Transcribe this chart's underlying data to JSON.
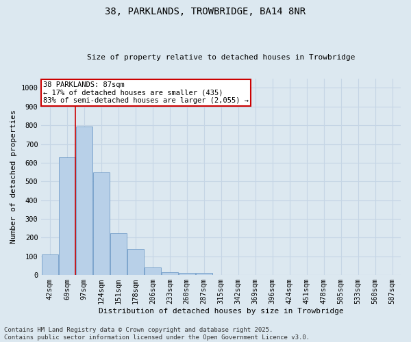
{
  "title_line1": "38, PARKLANDS, TROWBRIDGE, BA14 8NR",
  "title_line2": "Size of property relative to detached houses in Trowbridge",
  "xlabel": "Distribution of detached houses by size in Trowbridge",
  "ylabel": "Number of detached properties",
  "categories": [
    "42sqm",
    "69sqm",
    "97sqm",
    "124sqm",
    "151sqm",
    "178sqm",
    "206sqm",
    "233sqm",
    "260sqm",
    "287sqm",
    "315sqm",
    "342sqm",
    "369sqm",
    "396sqm",
    "424sqm",
    "451sqm",
    "478sqm",
    "505sqm",
    "533sqm",
    "560sqm",
    "587sqm"
  ],
  "values": [
    110,
    630,
    795,
    548,
    222,
    138,
    42,
    15,
    13,
    10,
    0,
    0,
    0,
    0,
    0,
    0,
    0,
    0,
    0,
    0,
    0
  ],
  "bar_color": "#b8d0e8",
  "bar_edgecolor": "#6090c0",
  "grid_color": "#c5d5e5",
  "background_color": "#dce8f0",
  "vline_color": "#cc0000",
  "annotation_text": "38 PARKLANDS: 87sqm\n← 17% of detached houses are smaller (435)\n83% of semi-detached houses are larger (2,055) →",
  "annotation_box_color": "#ffffff",
  "annotation_box_edgecolor": "#cc0000",
  "footer_text": "Contains HM Land Registry data © Crown copyright and database right 2025.\nContains public sector information licensed under the Open Government Licence v3.0.",
  "ylim": [
    0,
    1050
  ],
  "yticks": [
    0,
    100,
    200,
    300,
    400,
    500,
    600,
    700,
    800,
    900,
    1000
  ],
  "title_fontsize": 10,
  "subtitle_fontsize": 8,
  "ylabel_fontsize": 8,
  "xlabel_fontsize": 8,
  "tick_fontsize": 7.5,
  "annot_fontsize": 7.5,
  "footer_fontsize": 6.5
}
